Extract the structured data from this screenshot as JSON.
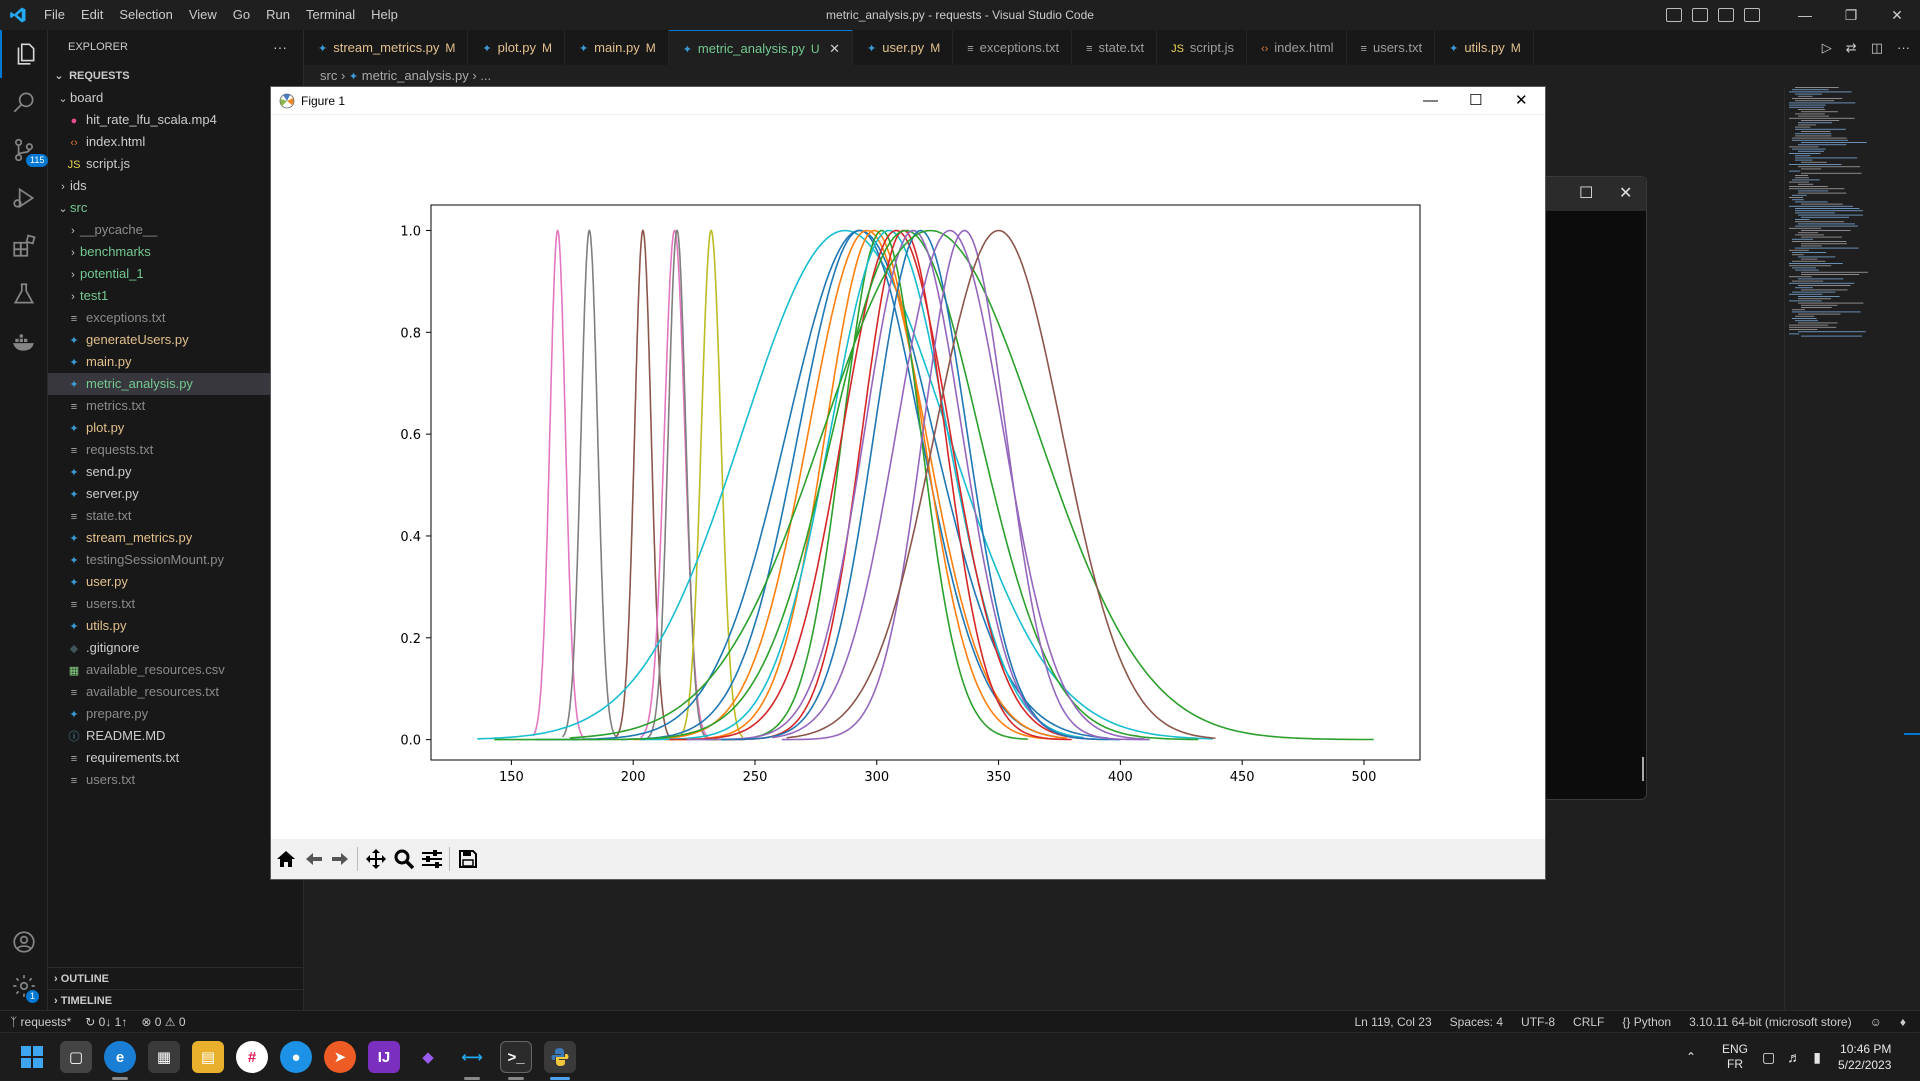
{
  "window": {
    "title": "metric_analysis.py - requests - Visual Studio Code",
    "menu": [
      "File",
      "Edit",
      "Selection",
      "View",
      "Go",
      "Run",
      "Terminal",
      "Help"
    ]
  },
  "activity": {
    "source_control_badge": "115",
    "settings_badge": "1"
  },
  "explorer": {
    "header": "EXPLORER",
    "root": "REQUESTS",
    "items": [
      {
        "label": "board",
        "kind": "folder-open",
        "depth": 1,
        "color": "norm"
      },
      {
        "label": "hit_rate_lfu_scala.mp4",
        "kind": "video",
        "depth": 2,
        "color": "norm"
      },
      {
        "label": "index.html",
        "kind": "html",
        "depth": 2,
        "color": "norm"
      },
      {
        "label": "script.js",
        "kind": "js",
        "depth": 2,
        "color": "norm"
      },
      {
        "label": "ids",
        "kind": "folder",
        "depth": 1,
        "color": "norm"
      },
      {
        "label": "src",
        "kind": "folder-open",
        "depth": 1,
        "color": "green"
      },
      {
        "label": "__pycache__",
        "kind": "folder",
        "depth": 2,
        "color": "dim"
      },
      {
        "label": "benchmarks",
        "kind": "folder",
        "depth": 2,
        "color": "green"
      },
      {
        "label": "potential_1",
        "kind": "folder",
        "depth": 2,
        "color": "green"
      },
      {
        "label": "test1",
        "kind": "folder",
        "depth": 2,
        "color": "green"
      },
      {
        "label": "exceptions.txt",
        "kind": "txt",
        "depth": 2,
        "color": "dim"
      },
      {
        "label": "generateUsers.py",
        "kind": "py",
        "depth": 2,
        "color": "mod"
      },
      {
        "label": "main.py",
        "kind": "py",
        "depth": 2,
        "color": "mod"
      },
      {
        "label": "metric_analysis.py",
        "kind": "py",
        "depth": 2,
        "color": "new",
        "selected": true
      },
      {
        "label": "metrics.txt",
        "kind": "txt",
        "depth": 2,
        "color": "dim"
      },
      {
        "label": "plot.py",
        "kind": "py",
        "depth": 2,
        "color": "mod"
      },
      {
        "label": "requests.txt",
        "kind": "txt",
        "depth": 2,
        "color": "dim"
      },
      {
        "label": "send.py",
        "kind": "py",
        "depth": 2,
        "color": "norm"
      },
      {
        "label": "server.py",
        "kind": "py",
        "depth": 2,
        "color": "norm"
      },
      {
        "label": "state.txt",
        "kind": "txt",
        "depth": 2,
        "color": "dim"
      },
      {
        "label": "stream_metrics.py",
        "kind": "py",
        "depth": 2,
        "color": "mod"
      },
      {
        "label": "testingSessionMount.py",
        "kind": "py",
        "depth": 2,
        "color": "dim"
      },
      {
        "label": "user.py",
        "kind": "py",
        "depth": 2,
        "color": "mod"
      },
      {
        "label": "users.txt",
        "kind": "txt",
        "depth": 2,
        "color": "dim"
      },
      {
        "label": "utils.py",
        "kind": "py",
        "depth": 2,
        "color": "mod"
      },
      {
        "label": ".gitignore",
        "kind": "git",
        "depth": 0,
        "color": "norm"
      },
      {
        "label": "available_resources.csv",
        "kind": "csv",
        "depth": 0,
        "color": "dim"
      },
      {
        "label": "available_resources.txt",
        "kind": "txt",
        "depth": 0,
        "color": "dim"
      },
      {
        "label": "prepare.py",
        "kind": "py",
        "depth": 0,
        "color": "dim"
      },
      {
        "label": "README.MD",
        "kind": "info",
        "depth": 0,
        "color": "norm"
      },
      {
        "label": "requirements.txt",
        "kind": "txt",
        "depth": 0,
        "color": "norm"
      },
      {
        "label": "users.txt",
        "kind": "txt",
        "depth": 0,
        "color": "dim"
      }
    ],
    "outline": "OUTLINE",
    "timeline": "TIMELINE"
  },
  "tabs": [
    {
      "label": "stream_metrics.py",
      "icon": "py",
      "status": "M"
    },
    {
      "label": "plot.py",
      "icon": "py",
      "status": "M"
    },
    {
      "label": "main.py",
      "icon": "py",
      "status": "M"
    },
    {
      "label": "metric_analysis.py",
      "icon": "py",
      "status": "U",
      "active": true
    },
    {
      "label": "user.py",
      "icon": "py",
      "status": "M"
    },
    {
      "label": "exceptions.txt",
      "icon": "txt",
      "status": ""
    },
    {
      "label": "state.txt",
      "icon": "txt",
      "status": ""
    },
    {
      "label": "script.js",
      "icon": "js",
      "status": ""
    },
    {
      "label": "index.html",
      "icon": "html",
      "status": ""
    },
    {
      "label": "users.txt",
      "icon": "txt",
      "status": ""
    },
    {
      "label": "utils.py",
      "icon": "py",
      "status": "M"
    }
  ],
  "breadcrumb": {
    "folder": "src",
    "file": "metric_analysis.py",
    "more": "..."
  },
  "figure": {
    "title": "Figure 1"
  },
  "chart_data": {
    "type": "line",
    "title": "",
    "xlabel": "",
    "ylabel": "",
    "xlim": [
      117,
      523
    ],
    "ylim": [
      -0.04,
      1.05
    ],
    "xticks": [
      150,
      200,
      250,
      300,
      350,
      400,
      450,
      500
    ],
    "yticks": [
      0.0,
      0.2,
      0.4,
      0.6,
      0.8,
      1.0
    ],
    "ytick_labels": [
      "0.0",
      "0.2",
      "0.4",
      "0.6",
      "0.8",
      "1.0"
    ],
    "grid": false,
    "legend": "none",
    "series": [
      {
        "mean": 169,
        "sd": 3.2,
        "x_range": [
          159,
          180
        ],
        "color": "#e377c2"
      },
      {
        "mean": 182,
        "sd": 3.4,
        "x_range": [
          171,
          193
        ],
        "color": "#7f7f7f"
      },
      {
        "mean": 204,
        "sd": 3.4,
        "x_range": [
          193,
          215
        ],
        "color": "#8c564b"
      },
      {
        "mean": 217,
        "sd": 4.2,
        "x_range": [
          203,
          231
        ],
        "color": "#e377c2"
      },
      {
        "mean": 218,
        "sd": 3.6,
        "x_range": [
          206,
          230
        ],
        "color": "#7f7f7f"
      },
      {
        "mean": 232,
        "sd": 4.0,
        "x_range": [
          219,
          245
        ],
        "color": "#bcbd22"
      },
      {
        "mean": 287,
        "sd": 42,
        "x_range": [
          136,
          438
        ],
        "color": "#17becf"
      },
      {
        "mean": 293,
        "sd": 30,
        "x_range": [
          160,
          395
        ],
        "color": "#1f77b4"
      },
      {
        "mean": 293,
        "sd": 25,
        "x_range": [
          195,
          374
        ],
        "color": "#1f77b4"
      },
      {
        "mean": 296,
        "sd": 24,
        "x_range": [
          200,
          378
        ],
        "color": "#ff7f0e"
      },
      {
        "mean": 299,
        "sd": 20,
        "x_range": [
          213,
          375
        ],
        "color": "#ff7f0e"
      },
      {
        "mean": 302,
        "sd": 16,
        "x_range": [
          230,
          362
        ],
        "color": "#2ca02c"
      },
      {
        "mean": 305,
        "sd": 24,
        "x_range": [
          203,
          385
        ],
        "color": "#17becf"
      },
      {
        "mean": 308,
        "sd": 22,
        "x_range": [
          215,
          385
        ],
        "color": "#d62728"
      },
      {
        "mean": 311,
        "sd": 17,
        "x_range": [
          238,
          380
        ],
        "color": "#d62728"
      },
      {
        "mean": 312,
        "sd": 30,
        "x_range": [
          143,
          432
        ],
        "color": "#2ca02c"
      },
      {
        "mean": 315,
        "sd": 20,
        "x_range": [
          222,
          392
        ],
        "color": "#9467bd"
      },
      {
        "mean": 318,
        "sd": 19,
        "x_range": [
          236,
          400
        ],
        "color": "#1f77b4"
      },
      {
        "mean": 322,
        "sd": 44,
        "x_range": [
          174,
          504
        ],
        "color": "#2ca02c"
      },
      {
        "mean": 330,
        "sd": 22,
        "x_range": [
          257,
          410
        ],
        "color": "#9467bd"
      },
      {
        "mean": 336,
        "sd": 17,
        "x_range": [
          261,
          412
        ],
        "color": "#9467bd"
      },
      {
        "mean": 350,
        "sd": 26,
        "x_range": [
          263,
          439
        ],
        "color": "#8c564b"
      }
    ]
  },
  "statusbar": {
    "branch": "requests*",
    "sync": "0↓ 1↑",
    "problems": "⊗ 0 ⚠ 0",
    "position": "Ln 119, Col 23",
    "spaces": "Spaces: 4",
    "encoding": "UTF-8",
    "eol": "CRLF",
    "language": "Python",
    "interpreter": "3.10.11 64-bit (microsoft store)"
  },
  "taskbar": {
    "lang1": "ENG",
    "lang2": "FR",
    "time": "10:46 PM",
    "date": "5/22/2023"
  }
}
